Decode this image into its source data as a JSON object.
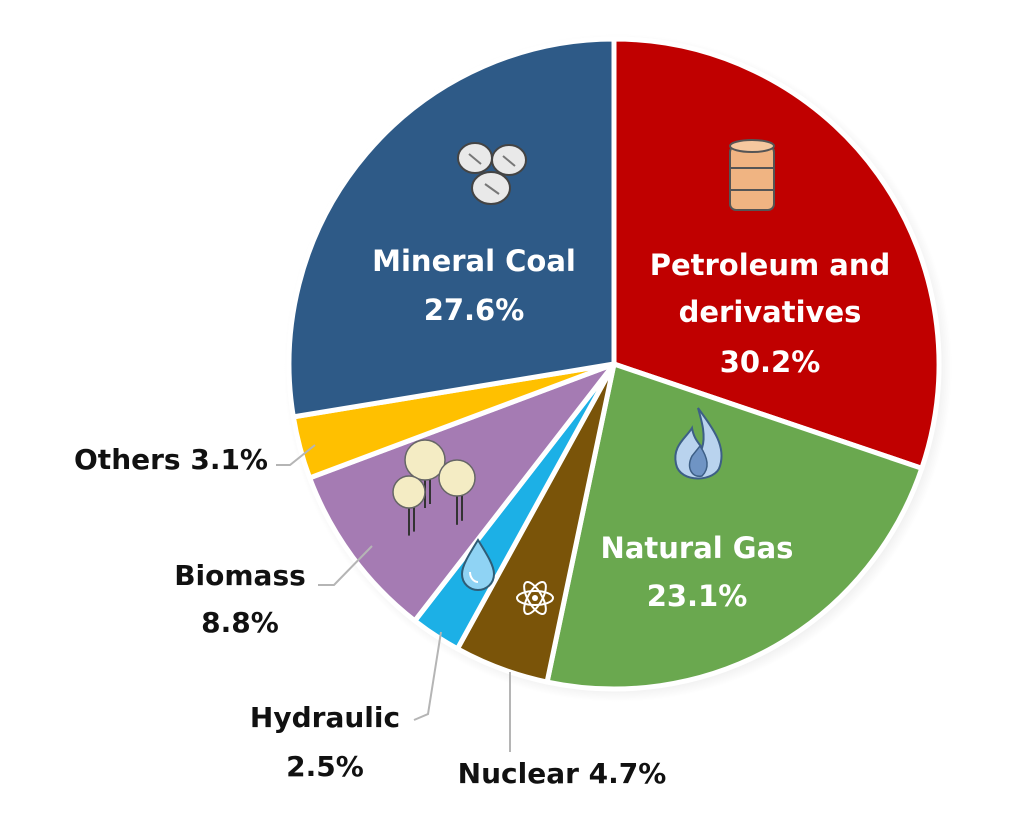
{
  "chart_data": {
    "type": "pie",
    "start": "top",
    "direction": "clockwise",
    "slices": [
      {
        "name": "Petroleum and derivatives",
        "value": 30.2,
        "color": "#c00000",
        "label_lines": [
          "Petroleum and",
          "derivatives",
          "30.2%"
        ],
        "label_placement": "inside",
        "icon": "oil-barrel-icon"
      },
      {
        "name": "Natural Gas",
        "value": 23.1,
        "color": "#6aa84f",
        "label_lines": [
          "Natural Gas",
          "23.1%"
        ],
        "label_placement": "inside",
        "icon": "flame-icon"
      },
      {
        "name": "Nuclear",
        "value": 4.7,
        "color": "#7a5409",
        "label_lines": [
          "Nuclear 4.7%"
        ],
        "label_placement": "outside",
        "icon": "atom-icon"
      },
      {
        "name": "Hydraulic",
        "value": 2.5,
        "color": "#1cb0e6",
        "label_lines": [
          "Hydraulic",
          "2.5%"
        ],
        "label_placement": "outside",
        "icon": "water-drop-icon"
      },
      {
        "name": "Biomass",
        "value": 8.8,
        "color": "#a57bb3",
        "label_lines": [
          "Biomass",
          "8.8%"
        ],
        "label_placement": "outside",
        "icon": "trees-icon"
      },
      {
        "name": "Others",
        "value": 3.1,
        "color": "#ffc000",
        "label_lines": [
          "Others 3.1%"
        ],
        "label_placement": "outside",
        "icon": ""
      },
      {
        "name": "Mineral Coal",
        "value": 27.6,
        "color": "#2e5a87",
        "label_lines": [
          "Mineral Coal",
          "27.6%"
        ],
        "label_placement": "inside",
        "icon": "coal-icon"
      }
    ]
  }
}
